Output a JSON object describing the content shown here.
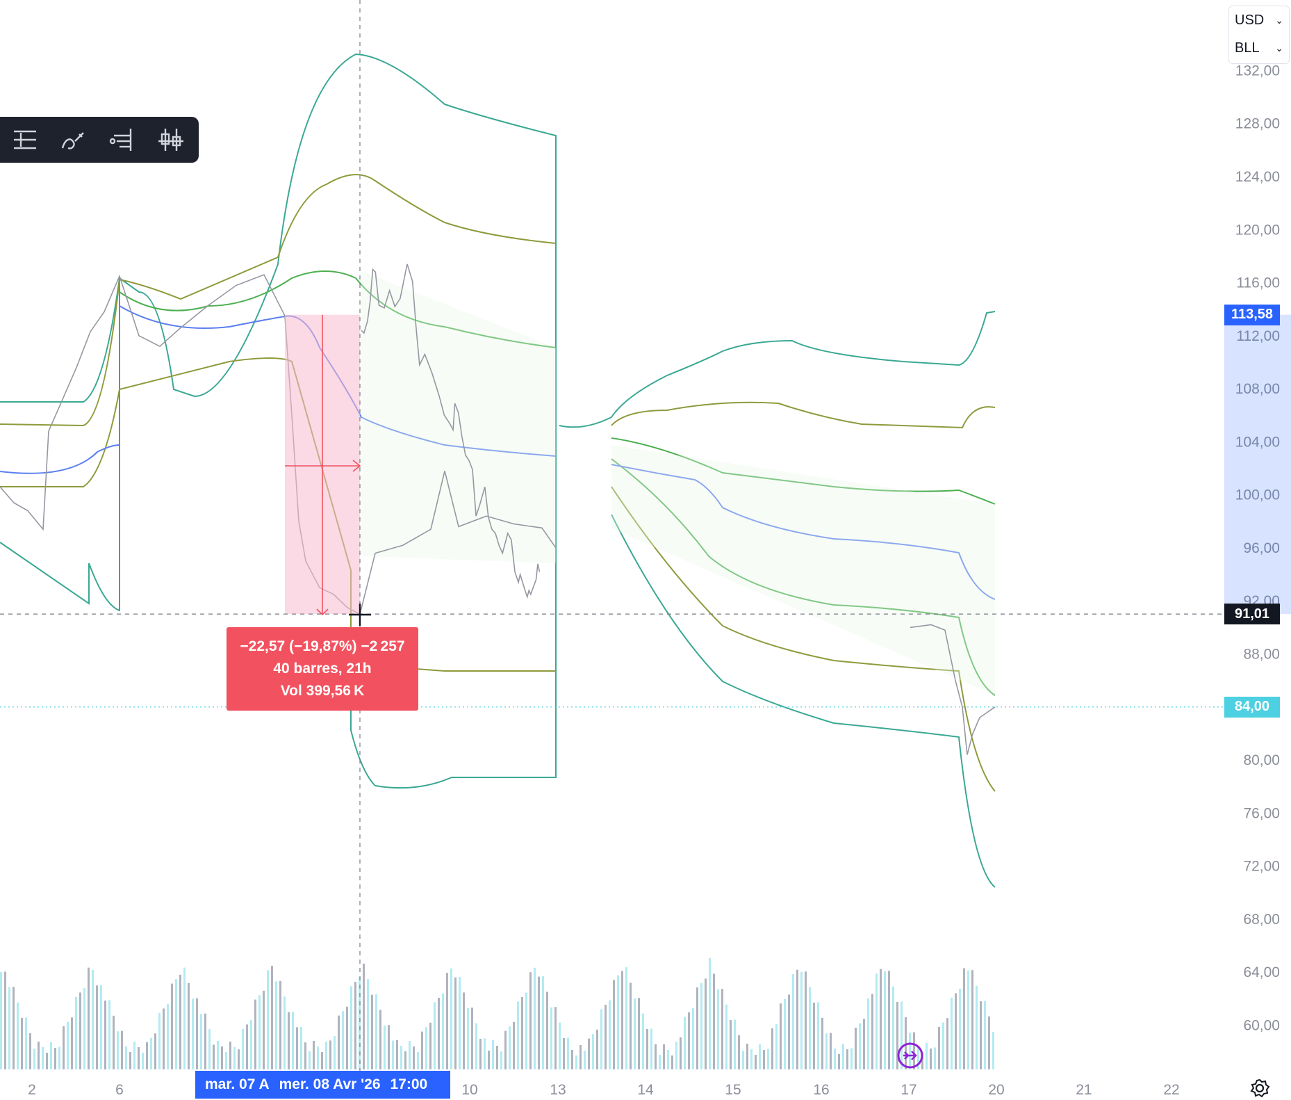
{
  "currency": {
    "unit": "USD",
    "symbol": "BLL"
  },
  "toolbar": {
    "tools": [
      "price-range-tool",
      "brush-tool",
      "position-tool",
      "candles-tool"
    ]
  },
  "measure": {
    "line1": "−22,57 (−19,87%) −2 257",
    "line2": "40 barres, 21h",
    "line3": "Vol 399,56 K"
  },
  "price_labels": {
    "top": "113,58",
    "crosshair": "91,01",
    "last": "84,00"
  },
  "time_label": {
    "a": "mar. 07 A",
    "b": "mer. 08 Avr '26",
    "c": "17:00"
  },
  "colors": {
    "accent_blue": "#2962ff",
    "measure_red": "#f2525f",
    "last_price_cyan": "#4dd0e1",
    "band_outer": "#3aa893",
    "band_mid": "#8f9a3c",
    "band_inner": "#4caf50",
    "vwap": "#5b7ff0"
  },
  "chart_data": {
    "type": "line",
    "title": "",
    "ylabel": "",
    "xlabel": "",
    "ylim": [
      58,
      134
    ],
    "yticks": [
      "60,00",
      "64,00",
      "68,00",
      "72,00",
      "76,00",
      "80,00",
      "84,00",
      "88,00",
      "92,00",
      "96,00",
      "100,00",
      "104,00",
      "108,00",
      "112,00",
      "116,00",
      "120,00",
      "124,00",
      "128,00",
      "132,00"
    ],
    "xticks": [
      "2",
      "6",
      "10",
      "13",
      "14",
      "15",
      "16",
      "17",
      "20",
      "21",
      "22"
    ],
    "measure_range": {
      "from": 113.58,
      "to": 91.01
    },
    "series": [
      {
        "points": [
          [
            0,
            112.4
          ],
          [
            3,
            112.2
          ],
          [
            7,
            113.1
          ],
          [
            10,
            114.6
          ],
          [
            13,
            117.0
          ],
          [
            16,
            116.8
          ],
          [
            20,
            114.3
          ],
          [
            26,
            114.1
          ],
          [
            32,
            115.4
          ],
          [
            38,
            114.2
          ],
          [
            44,
            114.8
          ],
          [
            52,
            117.4
          ],
          [
            58,
            116.1
          ],
          [
            62,
            112.7
          ],
          [
            66,
            109.8
          ],
          [
            72,
            110.6
          ],
          [
            80,
            109.2
          ],
          [
            88,
            107.5
          ],
          [
            94,
            106.0
          ],
          [
            100,
            105.4
          ],
          [
            104,
            104.9
          ],
          [
            106,
            106.9
          ],
          [
            110,
            106.2
          ],
          [
            114,
            104.4
          ],
          [
            118,
            103.0
          ],
          [
            122,
            102.6
          ],
          [
            126,
            101.9
          ],
          [
            130,
            98.4
          ],
          [
            134,
            99.2
          ],
          [
            140,
            100.6
          ],
          [
            144,
            98.3
          ],
          [
            148,
            97.4
          ],
          [
            152,
            97.1
          ],
          [
            156,
            96.2
          ],
          [
            160,
            95.6
          ],
          [
            166,
            97.1
          ],
          [
            170,
            96.6
          ],
          [
            174,
            94.2
          ],
          [
            178,
            93.4
          ],
          [
            180,
            94.0
          ],
          [
            186,
            92.7
          ],
          [
            188,
            92.3
          ],
          [
            190,
            92.8
          ],
          [
            192,
            92.5
          ],
          [
            198,
            93.6
          ],
          [
            200,
            94.8
          ],
          [
            202,
            94.2
          ]
        ]
      }
    ],
    "volume_panel": true
  }
}
